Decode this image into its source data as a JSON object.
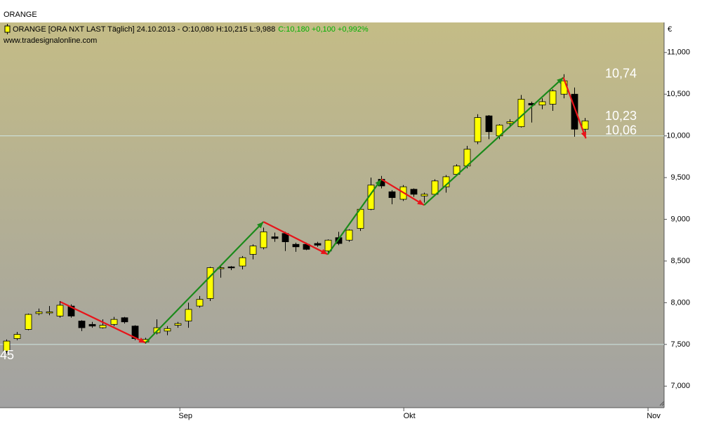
{
  "chart_data": {
    "type": "candlestick",
    "title": "ORANGE",
    "header": {
      "quote": "ORANGE [ORA NXT LAST Täglich] 24.10.2013 - O:10,080 H:10,215 L:9,988",
      "change": "C:10,180 +0,100 +0,992%",
      "change_color": "#00b000"
    },
    "source": "www.tradesignalonline.com",
    "ylabel": "€",
    "up_color": "#ffff00",
    "down_color": "#000000",
    "open": [
      7.42,
      7.57,
      7.68,
      7.87,
      7.88,
      7.84,
      7.96,
      7.78,
      7.74,
      7.7,
      7.74,
      7.82,
      7.72,
      7.53,
      7.64,
      7.66,
      7.73,
      7.78,
      7.96,
      8.05,
      8.41,
      8.43,
      8.44,
      8.58,
      8.66,
      8.79,
      8.83,
      8.7,
      8.7,
      8.71,
      8.62,
      8.78,
      8.75,
      8.89,
      9.12,
      9.48,
      9.33,
      9.24,
      9.36,
      9.28,
      9.3,
      9.39,
      9.54,
      9.64,
      9.93,
      10.24,
      10.0,
      10.15,
      10.11,
      10.39,
      10.37,
      10.38,
      10.5,
      10.5,
      10.08
    ],
    "high": [
      7.56,
      7.65,
      7.87,
      7.93,
      7.96,
      8.02,
      7.98,
      7.79,
      7.77,
      7.8,
      7.83,
      7.83,
      7.73,
      7.58,
      7.8,
      7.72,
      7.77,
      8.0,
      8.08,
      8.43,
      8.44,
      8.44,
      8.56,
      8.7,
      8.9,
      8.84,
      8.85,
      8.72,
      8.72,
      8.73,
      8.76,
      8.85,
      8.88,
      9.13,
      9.5,
      9.52,
      9.35,
      9.41,
      9.37,
      9.32,
      9.48,
      9.53,
      9.66,
      9.88,
      10.26,
      10.25,
      10.14,
      10.2,
      10.49,
      10.41,
      10.45,
      10.56,
      10.74,
      10.58,
      10.215
    ],
    "low": [
      7.39,
      7.55,
      7.67,
      7.85,
      7.85,
      7.82,
      7.82,
      7.66,
      7.7,
      7.69,
      7.72,
      7.75,
      7.55,
      7.51,
      7.62,
      7.61,
      7.7,
      7.7,
      7.94,
      8.02,
      8.3,
      8.39,
      8.4,
      8.52,
      8.64,
      8.73,
      8.62,
      8.61,
      8.63,
      8.67,
      8.6,
      8.69,
      8.73,
      8.86,
      9.11,
      9.37,
      9.18,
      9.22,
      9.27,
      9.2,
      9.28,
      9.32,
      9.52,
      9.61,
      9.9,
      9.96,
      9.96,
      10.1,
      10.1,
      10.16,
      10.32,
      10.3,
      10.45,
      9.99,
      9.988
    ],
    "close": [
      7.54,
      7.62,
      7.86,
      7.89,
      7.89,
      7.97,
      7.84,
      7.7,
      7.72,
      7.73,
      7.8,
      7.77,
      7.57,
      7.56,
      7.7,
      7.69,
      7.75,
      7.92,
      8.04,
      8.42,
      8.42,
      8.42,
      8.54,
      8.68,
      8.85,
      8.77,
      8.73,
      8.67,
      8.64,
      8.69,
      8.75,
      8.71,
      8.87,
      9.12,
      9.41,
      9.4,
      9.26,
      9.39,
      9.3,
      9.3,
      9.46,
      9.51,
      9.64,
      9.84,
      10.22,
      10.05,
      10.13,
      10.17,
      10.44,
      10.37,
      10.41,
      10.54,
      10.66,
      10.08,
      10.18
    ],
    "xlim": [
      -0.59,
      61.4
    ],
    "xticks": [
      {
        "value": 16.2,
        "label": "Sep"
      },
      {
        "value": 37.1,
        "label": "Okt"
      },
      {
        "value": 59.9,
        "label": "Nov"
      }
    ],
    "ylim": [
      6.75,
      11.36
    ],
    "yticks": [
      {
        "value": 7,
        "label": "7,000"
      },
      {
        "value": 7.5,
        "label": "7,500"
      },
      {
        "value": 8,
        "label": "8,000"
      },
      {
        "value": 8.5,
        "label": "8,500"
      },
      {
        "value": 9,
        "label": "9,000"
      },
      {
        "value": 9.5,
        "label": "9,500"
      },
      {
        "value": 10,
        "label": "10,000"
      },
      {
        "value": 10.5,
        "label": "10,500"
      },
      {
        "value": 11,
        "label": "11,000"
      }
    ],
    "hlines": [
      10,
      7.5
    ],
    "hline_color": "#cfe6e2",
    "arrows": [
      {
        "x": [
          5.05,
          13.0
        ],
        "y": [
          8.01,
          7.52
        ],
        "color": "#e8141a"
      },
      {
        "x": [
          13.0,
          24.0
        ],
        "y": [
          7.52,
          8.97
        ],
        "color": "#1a8a1a"
      },
      {
        "x": [
          24.0,
          30.0
        ],
        "y": [
          8.97,
          8.58
        ],
        "color": "#e8141a"
      },
      {
        "x": [
          30.0,
          35.0
        ],
        "y": [
          8.58,
          9.48
        ],
        "color": "#1a8a1a"
      },
      {
        "x": [
          35.0,
          39.0
        ],
        "y": [
          9.48,
          9.17
        ],
        "color": "#e8141a"
      },
      {
        "x": [
          39.0,
          52.0
        ],
        "y": [
          9.17,
          10.7
        ],
        "color": "#1a8a1a"
      },
      {
        "x": [
          52.0,
          54.1
        ],
        "y": [
          10.7,
          9.97
        ],
        "color": "#e8141a"
      }
    ],
    "annotations": [
      {
        "label": "10,74",
        "value": 10.74
      },
      {
        "label": "10,23",
        "value": 10.23
      },
      {
        "label": "10,06",
        "value": 10.06
      }
    ],
    "edge_label": "45"
  }
}
